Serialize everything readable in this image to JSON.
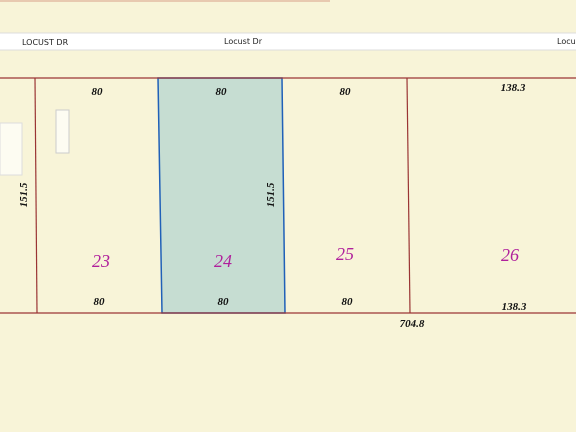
{
  "roads": [
    "LOCUST DR",
    "Locust Dr",
    "Locust Dr"
  ],
  "lots": [
    {
      "number": "23",
      "front": "80",
      "rear": "80"
    },
    {
      "number": "24",
      "front": "80",
      "rear": "80"
    },
    {
      "number": "25",
      "front": "80",
      "rear": "80"
    },
    {
      "number": "26",
      "front": "138.3",
      "rear": "138.3"
    }
  ],
  "depths": [
    "151.5",
    "151.5"
  ],
  "total": "704.8"
}
